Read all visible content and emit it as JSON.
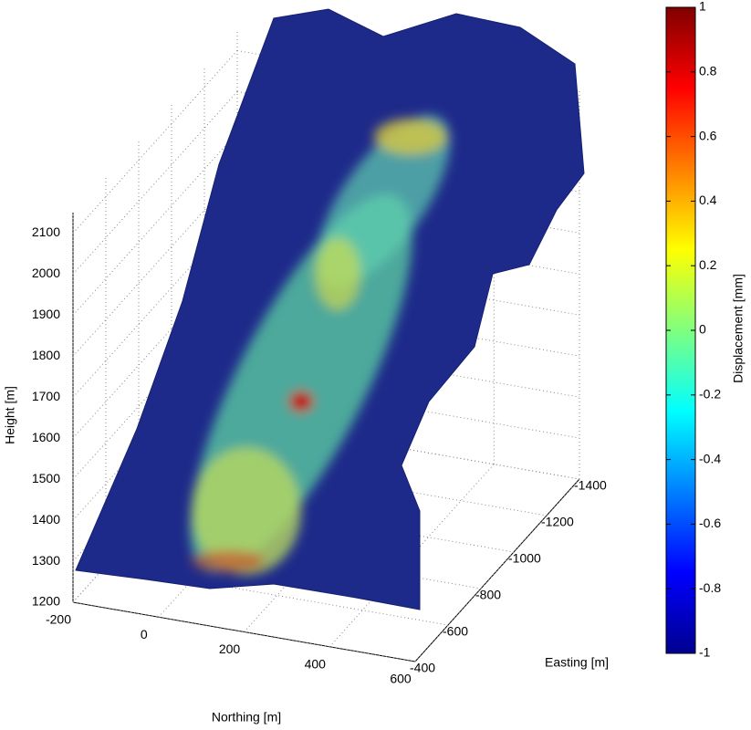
{
  "chart_data": {
    "type": "surface3d",
    "xlabel": "Northing [m]",
    "ylabel": "Easting [m]",
    "zlabel": "Height [m]",
    "xlim": [
      -200,
      600
    ],
    "xticks": [
      -200,
      0,
      200,
      400,
      600
    ],
    "ylim": [
      -400,
      -1400
    ],
    "yticks": [
      -400,
      -600,
      -800,
      -1000,
      -1200,
      -1400
    ],
    "zlim": [
      1200,
      2150
    ],
    "zticks": [
      1200,
      1300,
      1400,
      1500,
      1600,
      1700,
      1800,
      1900,
      2000,
      2100
    ],
    "grid": true,
    "colorbar": {
      "label": "Displacement [mm]",
      "clim": [
        -1,
        1
      ],
      "ticks": [
        -1,
        -0.8,
        -0.6,
        -0.4,
        -0.2,
        0,
        0.2,
        0.4,
        0.6,
        0.8,
        1
      ]
    }
  }
}
